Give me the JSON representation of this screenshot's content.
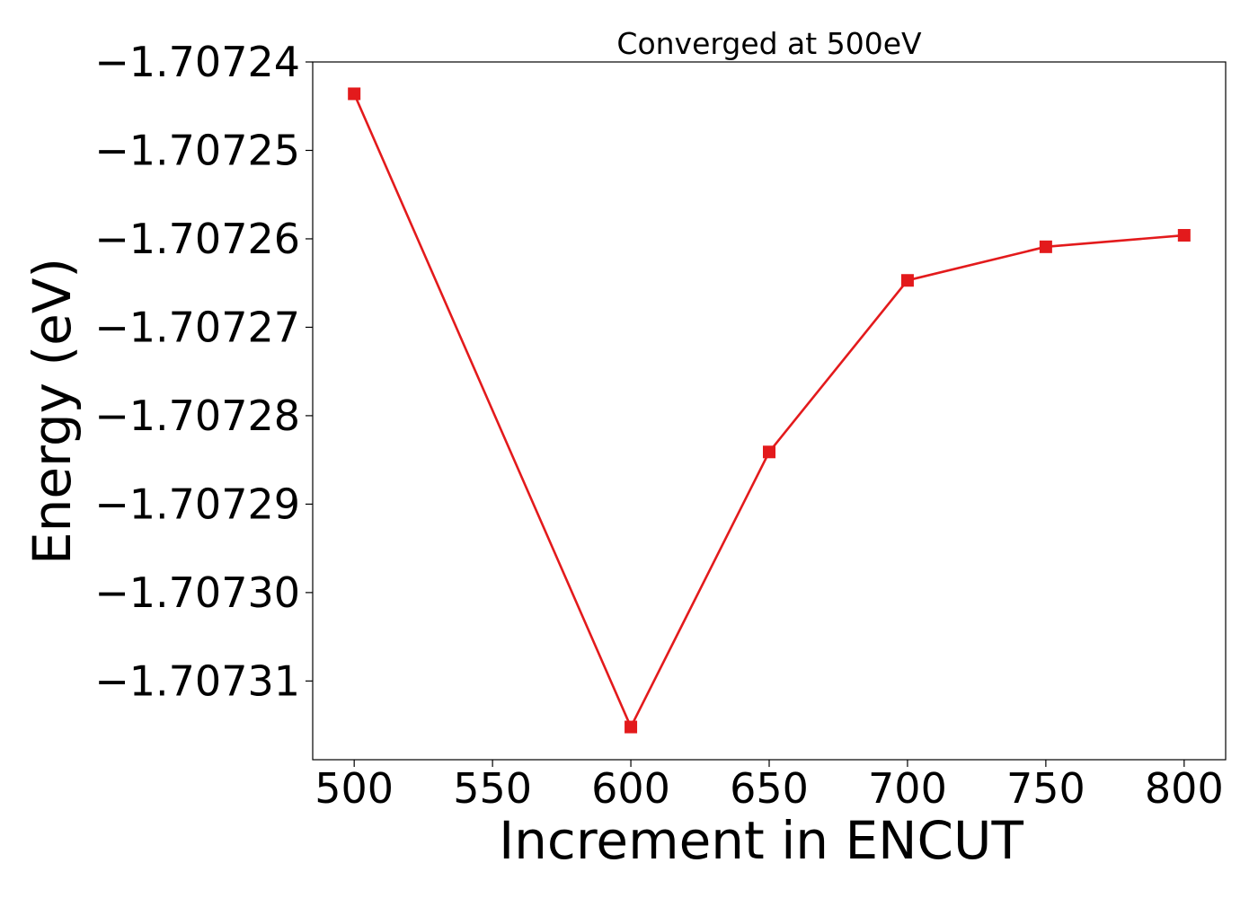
{
  "chart_data": {
    "type": "line",
    "title": "Converged at 500eV",
    "xlabel": "Increment in ENCUT",
    "ylabel": "Energy (eV)",
    "x": [
      500,
      600,
      650,
      700,
      750,
      800
    ],
    "series": [
      {
        "values": [
          -1.7072436,
          -1.7073152,
          -1.7072841,
          -1.7072647,
          -1.7072609,
          -1.7072596
        ],
        "color": "#e31a1c",
        "marker": "square"
      }
    ],
    "xticks": [
      500,
      550,
      600,
      650,
      700,
      750,
      800
    ],
    "xtick_labels": [
      "500",
      "550",
      "600",
      "650",
      "700",
      "750",
      "800"
    ],
    "yticks": [
      -1.70724,
      -1.70725,
      -1.70726,
      -1.70727,
      -1.70728,
      -1.70729,
      -1.7073,
      -1.70731
    ],
    "ytick_labels": [
      "−1.70724",
      "−1.70725",
      "−1.70726",
      "−1.70727",
      "−1.70728",
      "−1.70729",
      "−1.70730",
      "−1.70731"
    ],
    "xlim": [
      485,
      815
    ],
    "ylim": [
      -1.7073189,
      -1.70724
    ],
    "grid": false,
    "legend": "none"
  }
}
